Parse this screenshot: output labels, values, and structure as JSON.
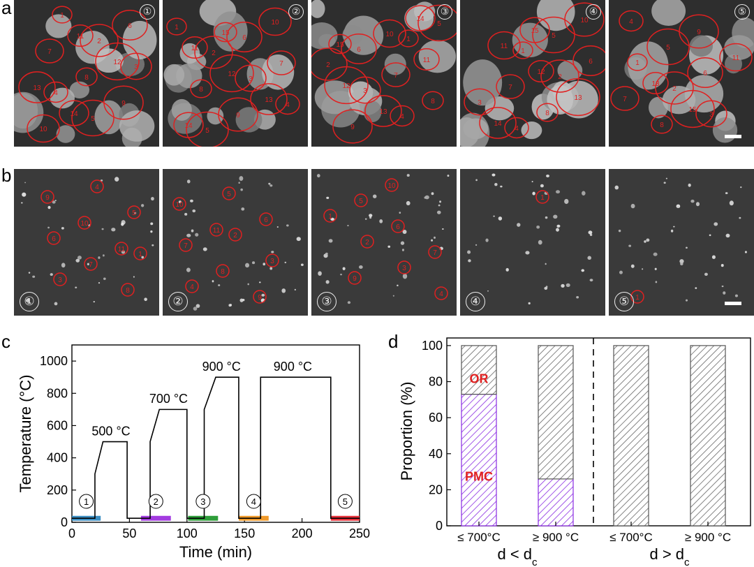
{
  "panel_labels": {
    "a": "a",
    "b": "b",
    "c": "c",
    "d": "d"
  },
  "stage_marks": [
    "①",
    "②",
    "③",
    "④",
    "⑤"
  ],
  "row_a": [
    {
      "labels": [
        "1",
        "2",
        "3",
        "4",
        "5",
        "6",
        "7",
        "8",
        "9",
        "10",
        "11",
        "12",
        "13",
        "14"
      ]
    },
    {
      "labels": [
        "1",
        "2",
        "3",
        "4",
        "5",
        "6",
        "7",
        "8",
        "9",
        "10",
        "11",
        "12",
        "13",
        "14",
        "15"
      ]
    },
    {
      "labels": [
        "1",
        "2",
        "3",
        "4",
        "5",
        "6",
        "7",
        "8",
        "9",
        "10",
        "11",
        "12",
        "13",
        "14",
        "15"
      ]
    },
    {
      "labels": [
        "1",
        "2",
        "3",
        "4",
        "5",
        "6",
        "7",
        "8",
        "10",
        "11",
        "12",
        "13",
        "14",
        "15"
      ]
    },
    {
      "labels": [
        "1",
        "2",
        "3",
        "4",
        "5",
        "6",
        "7",
        "8",
        "9",
        "11",
        "13",
        "15"
      ]
    }
  ],
  "row_b": [
    {
      "labels": [
        "1",
        "3",
        "4",
        "5",
        "6",
        "7",
        "8",
        "9",
        "10",
        "11"
      ]
    },
    {
      "labels": [
        "2",
        "3",
        "4",
        "5",
        "6",
        "7",
        "8",
        "9",
        "10",
        "11"
      ]
    },
    {
      "labels": [
        "1",
        "2",
        "3",
        "4",
        "5",
        "6",
        "7",
        "9",
        "10"
      ]
    },
    {
      "labels": [
        "1"
      ]
    },
    {
      "labels": [
        "1"
      ]
    }
  ],
  "chart_data": [
    {
      "type": "line",
      "xlabel": "Time (min)",
      "ylabel": "Temperature (°C)",
      "xlim": [
        0,
        250
      ],
      "ylim": [
        0,
        1100
      ],
      "xticks": [
        0,
        50,
        100,
        150,
        200,
        250
      ],
      "yticks": [
        0,
        200,
        400,
        600,
        800,
        1000
      ],
      "series": [
        {
          "x": [
            0,
            20,
            20,
            27,
            48,
            48,
            68,
            68,
            76,
            100,
            100,
            115,
            115,
            125,
            145,
            145,
            164,
            164,
            225,
            225,
            250
          ],
          "y": [
            25,
            25,
            300,
            500,
            500,
            25,
            25,
            500,
            700,
            700,
            25,
            25,
            700,
            900,
            900,
            25,
            25,
            900,
            900,
            25,
            25
          ]
        }
      ],
      "annotations": [
        {
          "text": "500 °C",
          "x": 34,
          "y": 540
        },
        {
          "text": "700 °C",
          "x": 84,
          "y": 740
        },
        {
          "text": "900 °C",
          "x": 130,
          "y": 940
        },
        {
          "text": "900 °C",
          "x": 192,
          "y": 940
        }
      ],
      "stage_segments": [
        {
          "label": "①",
          "x0": 0,
          "x1": 25,
          "color": "#3b8ec2"
        },
        {
          "label": "②",
          "x0": 60,
          "x1": 86,
          "color": "#a33be0"
        },
        {
          "label": "③",
          "x0": 101,
          "x1": 127,
          "color": "#2e9e3a"
        },
        {
          "label": "④",
          "x0": 145,
          "x1": 171,
          "color": "#f09a2a"
        },
        {
          "label": "⑤",
          "x0": 225,
          "x1": 250,
          "color": "#e8303a"
        }
      ]
    },
    {
      "type": "bar",
      "stacked": true,
      "ylabel": "Proportion (%)",
      "ylim": [
        0,
        105
      ],
      "yticks": [
        0,
        20,
        40,
        60,
        80,
        100
      ],
      "categories": [
        "≤ 700°C",
        "≥ 900 °C",
        "≤ 700°C",
        "≥ 900 °C"
      ],
      "groups": [
        "d < d_c",
        "d > d_c"
      ],
      "series": [
        {
          "name": "PMC",
          "values": [
            73,
            26,
            0,
            0
          ],
          "color": "#8a2be2"
        },
        {
          "name": "OR",
          "values": [
            27,
            74,
            100,
            100
          ],
          "color": "#555555"
        }
      ]
    }
  ]
}
